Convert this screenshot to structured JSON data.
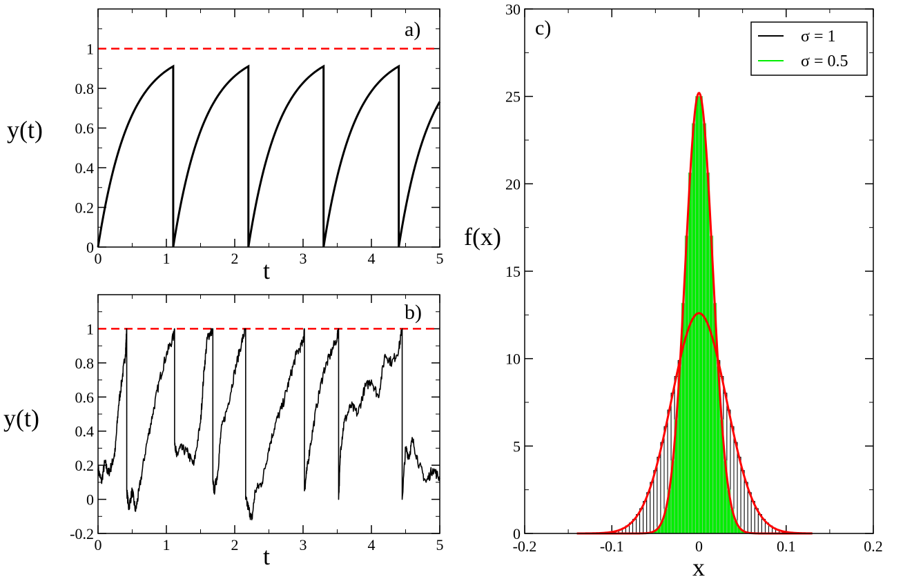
{
  "chart_data": [
    {
      "id": "a",
      "type": "line",
      "panel_label": "a)",
      "xlabel": "t",
      "ylabel": "y(t)",
      "xlim": [
        0,
        5
      ],
      "ylim": [
        0,
        1.2
      ],
      "xticks": [
        "0",
        "1",
        "2",
        "3",
        "4",
        "5"
      ],
      "yticks": [
        "0",
        "0.2",
        "0.4",
        "0.6",
        "0.8",
        "1"
      ],
      "ytick_values": [
        0,
        0.2,
        0.4,
        0.6,
        0.8,
        1
      ],
      "threshold": 1,
      "threshold_color": "#ff0000",
      "series_color": "#000000",
      "reset_times": [
        1.1,
        2.2,
        3.3,
        4.4
      ],
      "model": "y = 1 - exp(-t/tau) with reset at threshold 1",
      "tau": 0.4551
    },
    {
      "id": "b",
      "type": "line",
      "panel_label": "b)",
      "xlabel": "t",
      "ylabel": "y(t)",
      "xlim": [
        0,
        5
      ],
      "ylim": [
        -0.2,
        1.2
      ],
      "xticks": [
        "0",
        "1",
        "2",
        "3",
        "4",
        "5"
      ],
      "yticks": [
        "-0.2",
        "0",
        "0.2",
        "0.4",
        "0.6",
        "0.8",
        "1"
      ],
      "ytick_values": [
        -0.2,
        0,
        0.2,
        0.4,
        0.6,
        0.8,
        1
      ],
      "threshold": 1,
      "threshold_color": "#ff0000",
      "series_color": "#000000",
      "segments": [
        {
          "t": [
            0.0,
            0.05,
            0.1,
            0.15,
            0.2,
            0.25,
            0.3,
            0.35,
            0.4,
            0.42
          ],
          "y": [
            0.18,
            0.1,
            0.22,
            0.15,
            0.2,
            0.28,
            0.55,
            0.7,
            0.85,
            1.0
          ]
        },
        {
          "t": [
            0.42,
            0.45,
            0.5,
            0.55,
            0.6,
            0.7,
            0.8,
            0.9,
            1.0,
            1.1,
            1.12
          ],
          "y": [
            0.05,
            -0.05,
            0.05,
            -0.07,
            0.05,
            0.3,
            0.5,
            0.7,
            0.85,
            0.95,
            1.0
          ]
        },
        {
          "t": [
            1.12,
            1.15,
            1.2,
            1.3,
            1.4,
            1.5,
            1.55,
            1.6,
            1.65,
            1.68
          ],
          "y": [
            0.35,
            0.25,
            0.3,
            0.28,
            0.2,
            0.45,
            0.75,
            0.95,
            0.98,
            1.0
          ]
        },
        {
          "t": [
            1.68,
            1.7,
            1.75,
            1.8,
            1.9,
            2.0,
            2.1,
            2.16
          ],
          "y": [
            0.1,
            0.05,
            0.15,
            0.4,
            0.55,
            0.75,
            0.92,
            1.0
          ]
        },
        {
          "t": [
            2.16,
            2.2,
            2.25,
            2.3,
            2.4,
            2.5,
            2.6,
            2.7,
            2.8,
            2.9,
            3.0,
            3.02
          ],
          "y": [
            0.0,
            -0.05,
            -0.12,
            0.05,
            0.1,
            0.3,
            0.45,
            0.55,
            0.7,
            0.85,
            0.92,
            1.0
          ]
        },
        {
          "t": [
            3.02,
            3.05,
            3.1,
            3.2,
            3.3,
            3.4,
            3.5,
            3.52
          ],
          "y": [
            0.05,
            0.15,
            0.3,
            0.55,
            0.75,
            0.85,
            0.95,
            1.0
          ]
        },
        {
          "t": [
            3.52,
            3.55,
            3.6,
            3.7,
            3.8,
            3.9,
            4.0,
            4.1,
            4.2,
            4.3,
            4.4,
            4.45
          ],
          "y": [
            0.0,
            0.3,
            0.45,
            0.55,
            0.5,
            0.65,
            0.7,
            0.6,
            0.85,
            0.8,
            0.88,
            1.0
          ]
        },
        {
          "t": [
            4.45,
            4.5,
            4.55,
            4.6,
            4.7,
            4.8,
            4.9,
            5.0
          ],
          "y": [
            0.0,
            0.3,
            0.25,
            0.35,
            0.2,
            0.1,
            0.18,
            0.12
          ]
        }
      ]
    },
    {
      "id": "c",
      "type": "histogram",
      "panel_label": "c)",
      "xlabel": "x",
      "ylabel": "f(x)",
      "xlim": [
        -0.2,
        0.2
      ],
      "ylim": [
        0,
        30
      ],
      "xticks": [
        "-0.2",
        "-0.1",
        "0",
        "0.1",
        "0.2"
      ],
      "xtick_values": [
        -0.2,
        -0.1,
        0,
        0.1,
        0.2
      ],
      "yticks": [
        "0",
        "5",
        "10",
        "15",
        "20",
        "25",
        "30"
      ],
      "ytick_values": [
        0,
        5,
        10,
        15,
        20,
        25,
        30
      ],
      "bin_width": 0.004,
      "fit_color": "#ff0000",
      "fit_x_range": [
        -0.14,
        0.13
      ],
      "series": [
        {
          "name": "σ = 1",
          "mean": 0,
          "std": 0.0316,
          "peak": 12.6,
          "color": "#000000",
          "fill": "#ffffff"
        },
        {
          "name": "σ = 0.5",
          "mean": 0,
          "std": 0.0158,
          "peak": 25.2,
          "color": "#6fd36f",
          "fill": "#00ee00"
        }
      ]
    }
  ]
}
